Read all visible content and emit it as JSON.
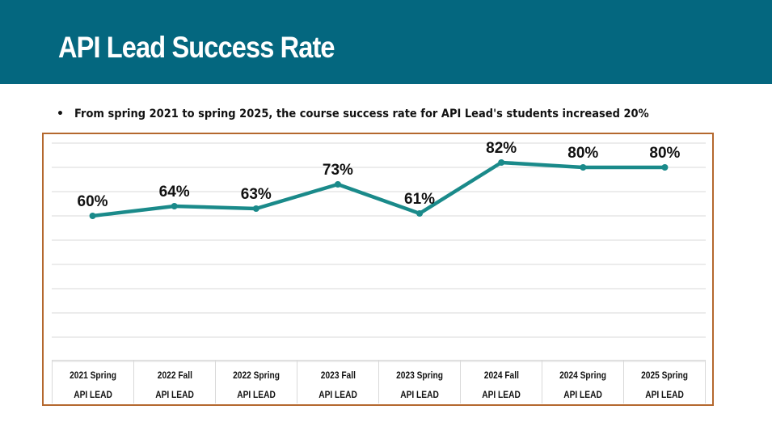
{
  "slide": {
    "title": "API Lead Success Rate",
    "bullet_symbol": "•",
    "bullet_text": "From spring 2021 to spring 2025, the course success rate for API Lead's students increased 20%"
  },
  "colors": {
    "header_band": "#04677f",
    "line": "#1a8a8a",
    "frame_border": "#b4682e",
    "gridline": "#d9d9d9"
  },
  "chart_data": {
    "type": "line",
    "title": "",
    "xlabel": "",
    "ylabel": "",
    "categories": [
      "2021 Spring",
      "2022 Fall",
      "2022 Spring",
      "2023 Fall",
      "2023 Spring",
      "2024 Fall",
      "2024 Spring",
      "2025 Spring"
    ],
    "category_group": "API LEAD",
    "series": [
      {
        "name": "API LEAD",
        "values": [
          60,
          64,
          63,
          73,
          61,
          82,
          80,
          80
        ],
        "labels": [
          "60%",
          "64%",
          "63%",
          "73%",
          "61%",
          "82%",
          "80%",
          "80%"
        ]
      }
    ],
    "ylim": [
      0,
      90
    ],
    "y_gridline_step": 10,
    "grid": true,
    "y_axis_labels_shown": false,
    "legend": "none"
  }
}
